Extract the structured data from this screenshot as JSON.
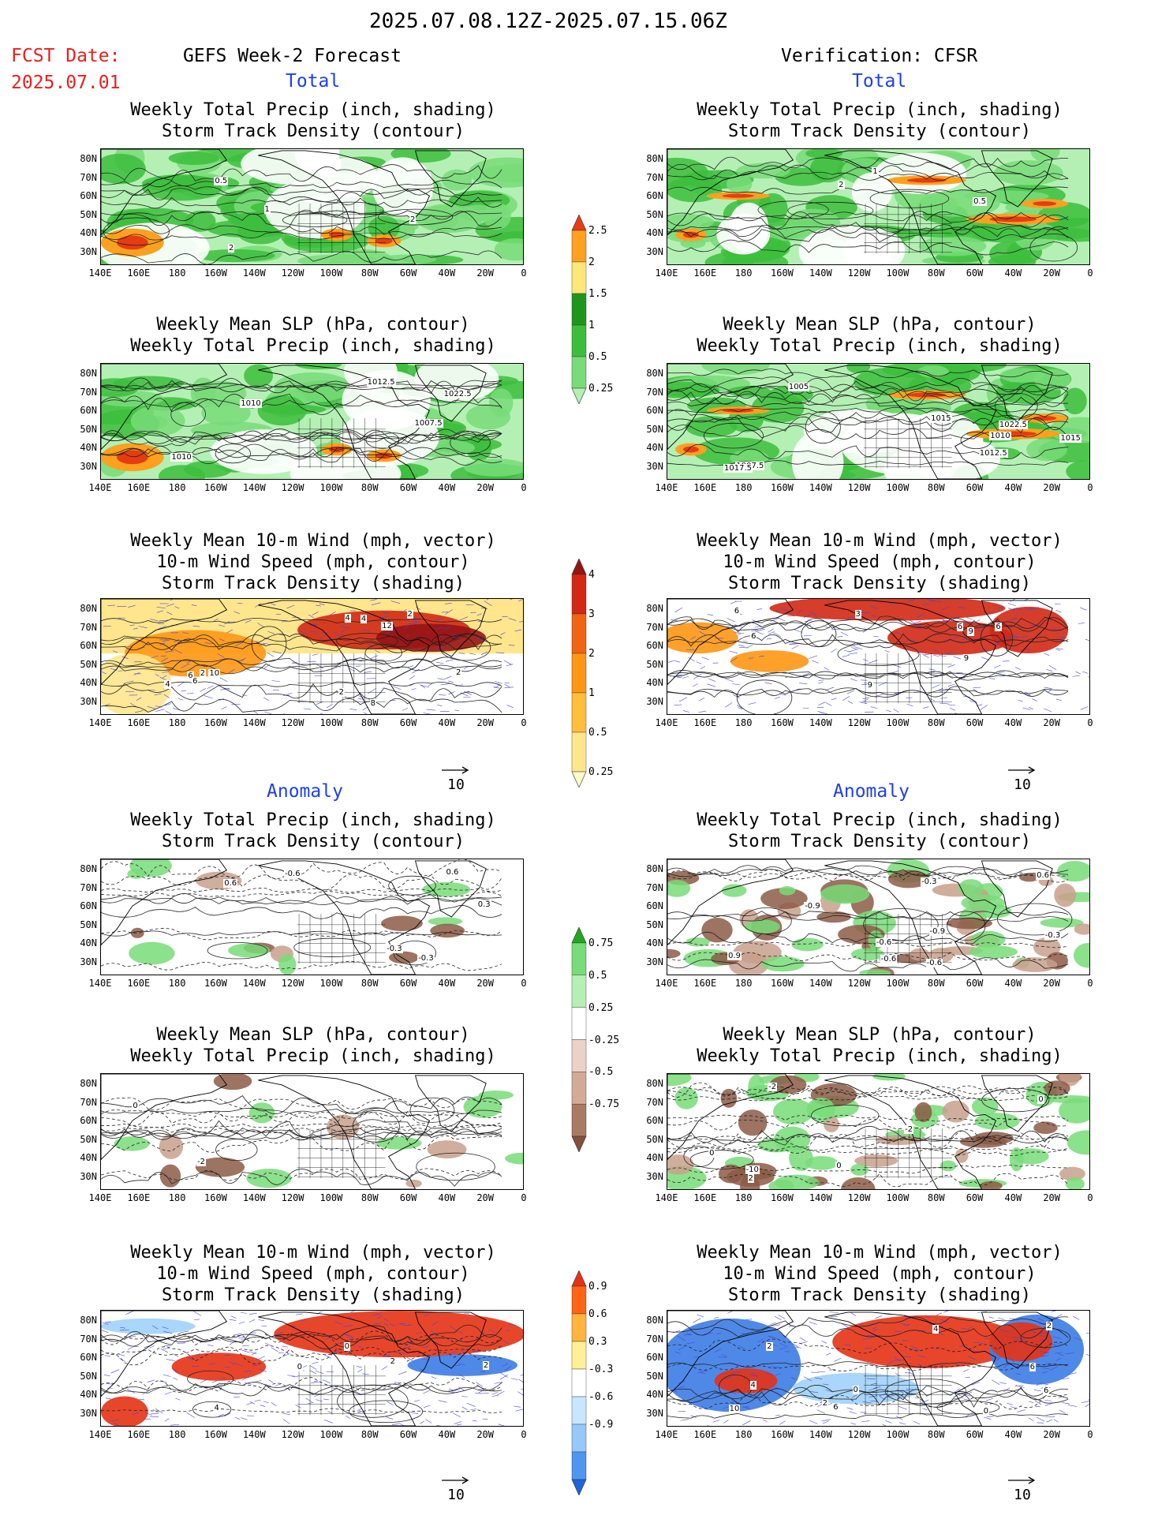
{
  "header": {
    "date_range": "2025.07.08.12Z-2025.07.15.06Z",
    "fcst_label": "FCST Date:",
    "fcst_date": "2025.07.01",
    "left_title": "GEFS Week-2 Forecast",
    "right_title": "Verification: CFSR"
  },
  "sections": {
    "total": "Total",
    "anomaly": "Anomaly"
  },
  "panel_titles": {
    "precip_storm": [
      "Weekly Total Precip (inch, shading)",
      "Storm Track Density (contour)"
    ],
    "slp_precip": [
      "Weekly Mean SLP (hPa, contour)",
      "Weekly Total Precip (inch, shading)"
    ],
    "wind_storm": [
      "Weekly Mean 10-m Wind (mph, vector)",
      "10-m Wind Speed (mph, contour)",
      "Storm Track Density (shading)"
    ]
  },
  "axes": {
    "lat_labels": [
      "80N",
      "70N",
      "60N",
      "50N",
      "40N",
      "30N"
    ],
    "lon_labels": [
      "140E",
      "160E",
      "180",
      "160W",
      "140W",
      "120W",
      "100W",
      "80W",
      "60W",
      "40W",
      "20W",
      "0"
    ]
  },
  "vector_ref": "10",
  "colorbars": {
    "precip_total": {
      "levels": [
        "0.25",
        "0.5",
        "1",
        "1.5",
        "2",
        "2.5"
      ],
      "colors": [
        "#b4f0b4",
        "#78dc78",
        "#3cbe3c",
        "#1e961e",
        "#ffe678",
        "#ffa01e",
        "#e63c14"
      ]
    },
    "storm_total": {
      "levels": [
        "0.25",
        "0.5",
        "1",
        "2",
        "3",
        "4"
      ],
      "colors": [
        "#fffac8",
        "#ffe68c",
        "#ffbe3c",
        "#ff9614",
        "#f06414",
        "#d22814",
        "#961414"
      ]
    },
    "precip_anom": {
      "levels": [
        "-0.75",
        "-0.5",
        "-0.25",
        "0.25",
        "0.5",
        "0.75"
      ],
      "colors": [
        "#82503c",
        "#aa7a64",
        "#d2aa96",
        "#ebd2c8",
        "#ffffff",
        "#b4f0b4",
        "#78dc78",
        "#1eaa1e"
      ]
    },
    "storm_anom": {
      "levels": [
        "-0.9",
        "-0.6",
        "-0.3",
        "0.3",
        "0.6",
        "0.9"
      ],
      "colors": [
        "#1e64dc",
        "#5096f0",
        "#96c8fa",
        "#c8e6ff",
        "#ffffff",
        "#fff096",
        "#ffb43c",
        "#ff6414",
        "#e63214"
      ]
    }
  },
  "map_colors": {
    "precip_low": "#b4f0b4",
    "precip_mid": "#78dc78",
    "precip_high": "#3cbe3c",
    "precip_very": "#ffa01e",
    "precip_max": "#e63c14",
    "storm_low": "#ffe68c",
    "storm_mid": "#ff9614",
    "storm_high": "#d22814",
    "dry": "#c8a08c",
    "dry_deep": "#8c5a46",
    "blue_anom": "#3c7ce6",
    "blue_light": "#a0d2fa",
    "wind_vector": "#4646d2"
  },
  "contour_labels": {
    "f_total_1": [
      "2",
      "0.5",
      "1",
      "2"
    ],
    "v_total_1": [
      "1",
      "2",
      "0.5"
    ],
    "f_total_2": [
      "1010",
      "1007.5",
      "1010",
      "1012.5",
      "1022.5"
    ],
    "v_total_2": [
      "1005",
      "1007.5",
      "1010",
      "1015",
      "1012.5",
      "1017.5",
      "1022.5",
      "1015"
    ],
    "f_total_3": [
      "2",
      "4",
      "2",
      "4",
      "2",
      "4",
      "6",
      "8",
      "10",
      "12",
      "6",
      "2"
    ],
    "v_total_3": [
      "6",
      "9",
      "6",
      "6",
      "3",
      "9",
      "6",
      "9"
    ],
    "f_anom_1": [
      "-0.3",
      "0.6",
      "-0.3",
      "0.3",
      "-0.6",
      "0.6"
    ],
    "v_anom_1": [
      "0.9",
      "-0.3",
      "-0.6",
      "0.6",
      "-0.6",
      "-0.3",
      "-0.9",
      "-0.9",
      "-0.6"
    ],
    "f_anom_2": [
      "-2",
      "0"
    ],
    "v_anom_2": [
      "-2",
      "0",
      "0",
      "-10",
      "-2",
      "0",
      "2"
    ],
    "f_anom_3": [
      "0",
      "2",
      "2",
      "4",
      "0"
    ],
    "v_anom_3": [
      "10",
      "2",
      "0",
      "4",
      "6",
      "6",
      "4",
      "2",
      "0",
      "6",
      "2"
    ]
  }
}
